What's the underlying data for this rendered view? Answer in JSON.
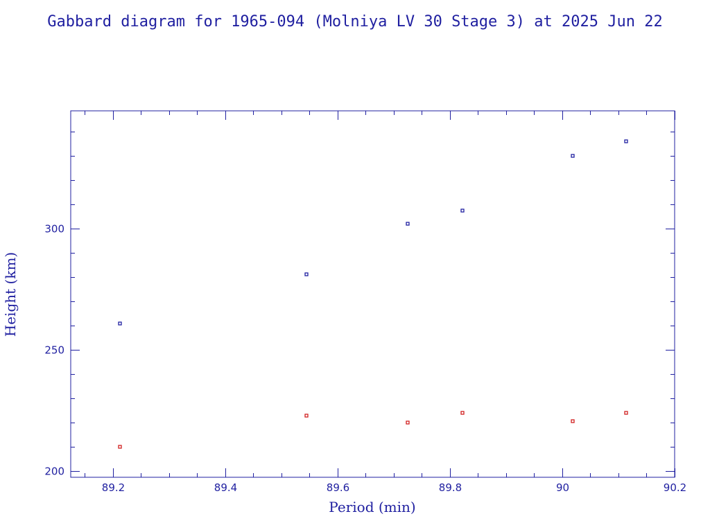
{
  "chart_data": {
    "type": "scatter",
    "title": "Gabbard diagram for 1965-094 (Molniya LV 30 Stage 3) at 2025 Jun 22",
    "xlabel": "Period (min)",
    "ylabel": "Height (km)",
    "xlim": [
      89.125,
      90.2
    ],
    "ylim": [
      197.5,
      348.5
    ],
    "x_major_ticks": [
      89.2,
      89.4,
      89.6,
      89.8,
      90,
      90.2
    ],
    "x_tick_labels": [
      "89.2",
      "89.4",
      "89.6",
      "89.8",
      "90",
      "90.2"
    ],
    "x_minor_step": 0.05,
    "y_major_ticks": [
      200,
      250,
      300
    ],
    "y_tick_labels": [
      "200",
      "250",
      "300"
    ],
    "y_minor_step": 10,
    "grid": false,
    "series": [
      {
        "color": "#1f1fa0",
        "points": [
          {
            "x": 89.213,
            "y": 261
          },
          {
            "x": 89.545,
            "y": 281
          },
          {
            "x": 89.725,
            "y": 302
          },
          {
            "x": 89.822,
            "y": 307.5
          },
          {
            "x": 90.019,
            "y": 330
          },
          {
            "x": 90.114,
            "y": 336
          }
        ]
      },
      {
        "color": "#d11f1f",
        "points": [
          {
            "x": 89.213,
            "y": 210
          },
          {
            "x": 89.545,
            "y": 223
          },
          {
            "x": 89.725,
            "y": 220
          },
          {
            "x": 89.822,
            "y": 224
          },
          {
            "x": 90.019,
            "y": 220.5
          },
          {
            "x": 90.114,
            "y": 224
          }
        ]
      }
    ]
  }
}
